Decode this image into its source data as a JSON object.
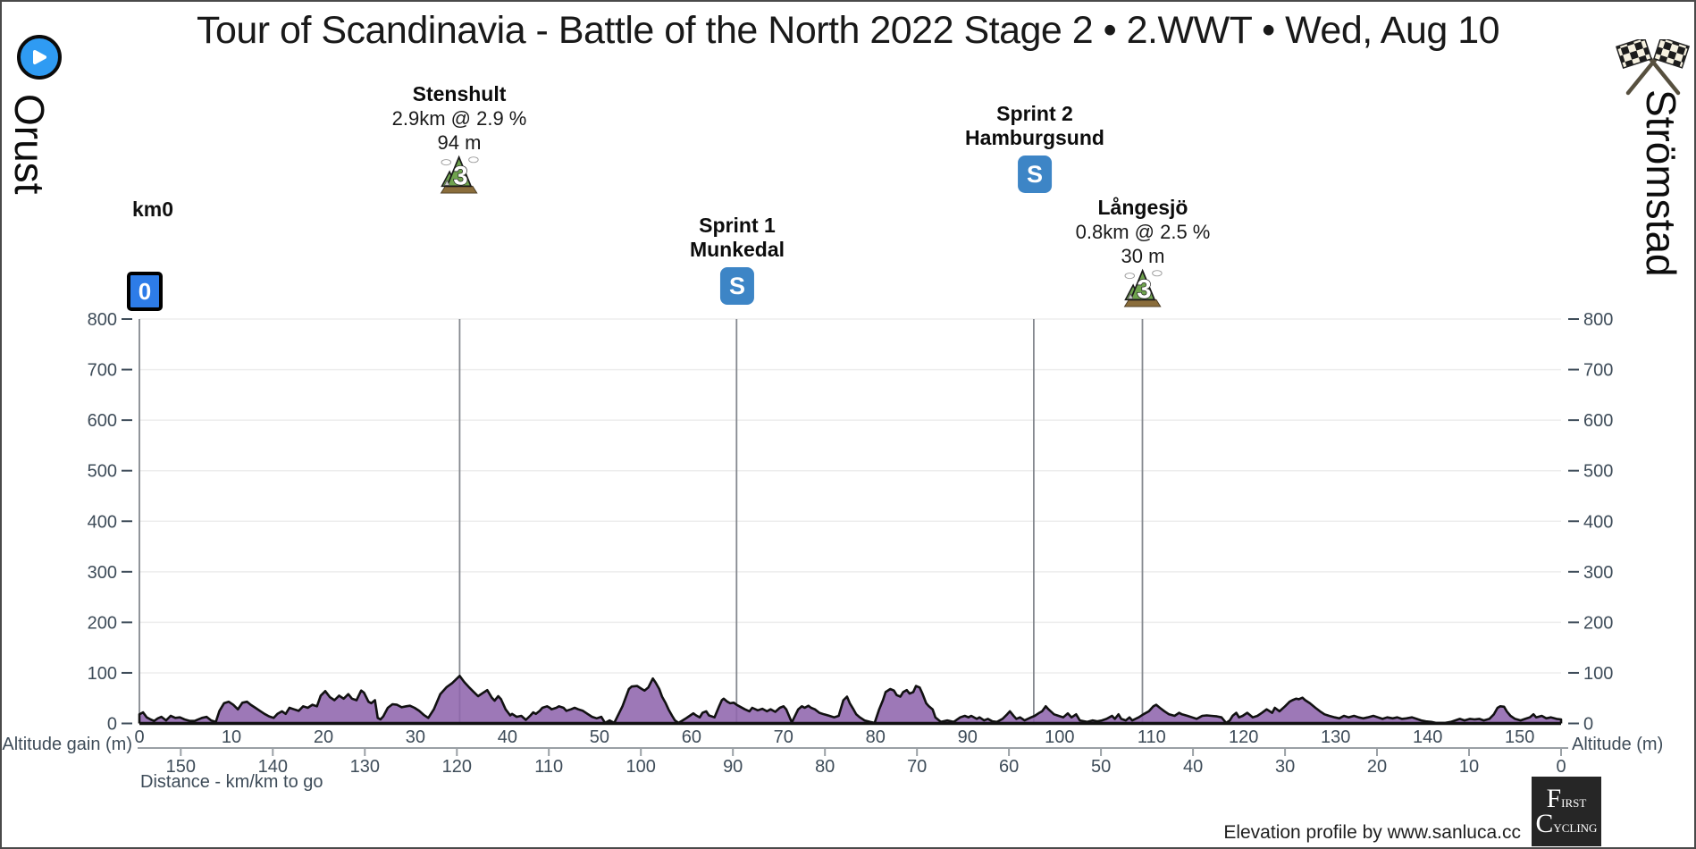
{
  "header": {
    "title": "Tour of Scandinavia - Battle of the North 2022 Stage 2 • 2.WWT • Wed, Aug 10",
    "start_location": "Orust",
    "finish_location": "Strömstad"
  },
  "annotations": {
    "km0": {
      "label": "km0",
      "marker": "0"
    },
    "climb1": {
      "name": "Stenshult",
      "detail": "2.9km @ 2.9 %",
      "height": "94 m"
    },
    "sprint1": {
      "name": "Sprint 1",
      "place": "Munkedal",
      "marker": "S"
    },
    "sprint2": {
      "name": "Sprint 2",
      "place": "Hamburgsund",
      "marker": "S"
    },
    "climb2": {
      "name": "Långesjö",
      "detail": "0.8km @ 2.5 %",
      "height": "30 m"
    }
  },
  "axes": {
    "left_label": "Altitude gain (m)",
    "right_label": "Altitude (m)",
    "x_label": "Distance - km/km to go"
  },
  "footer": {
    "credit": "Elevation profile by www.sanluca.cc",
    "logo_line1": "First",
    "logo_line2": "Cycling"
  },
  "chart_data": {
    "type": "area",
    "title": "Stage 2 elevation profile Orust → Strömstad",
    "xlabel": "Distance - km/km to go",
    "ylabel_left": "Altitude gain (m)",
    "ylabel_right": "Altitude (m)",
    "ylim": [
      0,
      800
    ],
    "total_km": 154.5,
    "yticks": [
      0,
      100,
      200,
      300,
      400,
      500,
      600,
      700,
      800
    ],
    "xticks": [
      0,
      10,
      20,
      30,
      40,
      50,
      60,
      70,
      80,
      90,
      100,
      110,
      120,
      130,
      140,
      150
    ],
    "xticks_togo": [
      150,
      140,
      130,
      120,
      110,
      100,
      90,
      80,
      70,
      60,
      50,
      40,
      30,
      20,
      10,
      0
    ],
    "grid": "horizontal-faint",
    "fill_color": "#9065ad",
    "outline_color": "#111111",
    "event_line_color": "#85898f",
    "events": [
      {
        "km": 0,
        "label": "km0",
        "line": true
      },
      {
        "km": 34.8,
        "label": "Stenshult climb, 94 m",
        "line": true
      },
      {
        "km": 64.9,
        "label": "Sprint 1 Munkedal",
        "line": true
      },
      {
        "km": 97.2,
        "label": "Sprint 2 Hamburgsund",
        "line": true
      },
      {
        "km": 109.0,
        "label": "Långesjö climb, 30 m",
        "line": true
      }
    ],
    "profile": [
      [
        0,
        18
      ],
      [
        0.4,
        22
      ],
      [
        0.8,
        12
      ],
      [
        1.2,
        8
      ],
      [
        1.6,
        5
      ],
      [
        2.0,
        10
      ],
      [
        2.4,
        13
      ],
      [
        2.9,
        6
      ],
      [
        3.4,
        15
      ],
      [
        3.9,
        11
      ],
      [
        4.4,
        12
      ],
      [
        4.9,
        8
      ],
      [
        5.5,
        5
      ],
      [
        6.0,
        5
      ],
      [
        6.8,
        11
      ],
      [
        7.3,
        13
      ],
      [
        7.8,
        6
      ],
      [
        8.3,
        3
      ],
      [
        8.7,
        25
      ],
      [
        9.2,
        40
      ],
      [
        9.7,
        43
      ],
      [
        10.2,
        37
      ],
      [
        10.7,
        28
      ],
      [
        11.2,
        41
      ],
      [
        11.7,
        43
      ],
      [
        12.1,
        37
      ],
      [
        12.6,
        31
      ],
      [
        13.1,
        25
      ],
      [
        13.6,
        19
      ],
      [
        14.1,
        14
      ],
      [
        14.6,
        11
      ],
      [
        15.0,
        19
      ],
      [
        15.5,
        24
      ],
      [
        15.9,
        19
      ],
      [
        16.3,
        31
      ],
      [
        16.8,
        28
      ],
      [
        17.3,
        25
      ],
      [
        17.8,
        34
      ],
      [
        18.3,
        31
      ],
      [
        18.8,
        37
      ],
      [
        19.3,
        34
      ],
      [
        19.7,
        55
      ],
      [
        20.2,
        64
      ],
      [
        20.7,
        52
      ],
      [
        21.2,
        46
      ],
      [
        21.7,
        55
      ],
      [
        22.2,
        49
      ],
      [
        22.7,
        58
      ],
      [
        23.1,
        49
      ],
      [
        23.6,
        46
      ],
      [
        24.1,
        65
      ],
      [
        24.4,
        61
      ],
      [
        24.9,
        43
      ],
      [
        25.2,
        40
      ],
      [
        25.6,
        46
      ],
      [
        25.9,
        11
      ],
      [
        26.2,
        8
      ],
      [
        26.5,
        14
      ],
      [
        27.0,
        31
      ],
      [
        27.5,
        38
      ],
      [
        28.0,
        37
      ],
      [
        28.5,
        32
      ],
      [
        29.0,
        34
      ],
      [
        29.4,
        35
      ],
      [
        29.9,
        31
      ],
      [
        30.4,
        25
      ],
      [
        30.9,
        17
      ],
      [
        31.4,
        11
      ],
      [
        32.0,
        28
      ],
      [
        32.7,
        58
      ],
      [
        33.4,
        72
      ],
      [
        34.0,
        80
      ],
      [
        34.8,
        94
      ],
      [
        35.3,
        82
      ],
      [
        35.8,
        72
      ],
      [
        36.3,
        63
      ],
      [
        36.8,
        54
      ],
      [
        37.3,
        60
      ],
      [
        37.8,
        66
      ],
      [
        38.3,
        51
      ],
      [
        38.6,
        45
      ],
      [
        39.0,
        54
      ],
      [
        39.3,
        48
      ],
      [
        39.8,
        28
      ],
      [
        40.3,
        16
      ],
      [
        40.5,
        19
      ],
      [
        41.0,
        13
      ],
      [
        41.5,
        15
      ],
      [
        42.0,
        7
      ],
      [
        42.5,
        16
      ],
      [
        42.8,
        22
      ],
      [
        43.1,
        19
      ],
      [
        43.5,
        25
      ],
      [
        43.8,
        31
      ],
      [
        44.3,
        34
      ],
      [
        44.6,
        31
      ],
      [
        44.8,
        28
      ],
      [
        45.3,
        31
      ],
      [
        45.6,
        34
      ],
      [
        46.1,
        31
      ],
      [
        46.4,
        25
      ],
      [
        46.9,
        28
      ],
      [
        47.3,
        31
      ],
      [
        47.7,
        28
      ],
      [
        48.2,
        25
      ],
      [
        48.7,
        19
      ],
      [
        49.2,
        13
      ],
      [
        49.7,
        10
      ],
      [
        50.2,
        13
      ],
      [
        50.6,
        1
      ],
      [
        51.1,
        6
      ],
      [
        51.6,
        1
      ],
      [
        52.5,
        34
      ],
      [
        53.2,
        68
      ],
      [
        53.5,
        73
      ],
      [
        54.1,
        74
      ],
      [
        54.6,
        68
      ],
      [
        54.9,
        65
      ],
      [
        55.3,
        71
      ],
      [
        55.8,
        89
      ],
      [
        56.1,
        81
      ],
      [
        56.5,
        68
      ],
      [
        56.8,
        53
      ],
      [
        57.2,
        40
      ],
      [
        57.5,
        28
      ],
      [
        57.9,
        15
      ],
      [
        58.2,
        6
      ],
      [
        58.6,
        1
      ],
      [
        59.3,
        9
      ],
      [
        59.8,
        15
      ],
      [
        60.2,
        20
      ],
      [
        60.5,
        16
      ],
      [
        60.9,
        12
      ],
      [
        61.2,
        21
      ],
      [
        61.6,
        24
      ],
      [
        61.9,
        16
      ],
      [
        62.5,
        12
      ],
      [
        63.0,
        34
      ],
      [
        63.3,
        46
      ],
      [
        63.5,
        49
      ],
      [
        63.9,
        43
      ],
      [
        64.2,
        40
      ],
      [
        64.6,
        41
      ],
      [
        64.9,
        37
      ],
      [
        65.2,
        34
      ],
      [
        65.8,
        28
      ],
      [
        66.3,
        24
      ],
      [
        66.6,
        31
      ],
      [
        67.2,
        26
      ],
      [
        67.7,
        29
      ],
      [
        68.2,
        24
      ],
      [
        68.6,
        28
      ],
      [
        69.1,
        23
      ],
      [
        69.6,
        31
      ],
      [
        70.0,
        34
      ],
      [
        70.3,
        28
      ],
      [
        70.9,
        2
      ],
      [
        71.6,
        28
      ],
      [
        72.0,
        34
      ],
      [
        72.3,
        31
      ],
      [
        72.7,
        35
      ],
      [
        73.0,
        31
      ],
      [
        73.4,
        28
      ],
      [
        73.9,
        21
      ],
      [
        74.4,
        18
      ],
      [
        75.0,
        15
      ],
      [
        75.5,
        12
      ],
      [
        76.0,
        15
      ],
      [
        76.5,
        46
      ],
      [
        76.9,
        53
      ],
      [
        77.2,
        40
      ],
      [
        77.6,
        28
      ],
      [
        77.9,
        18
      ],
      [
        78.3,
        12
      ],
      [
        78.8,
        6
      ],
      [
        79.4,
        3
      ],
      [
        79.9,
        1
      ],
      [
        80.4,
        28
      ],
      [
        80.8,
        46
      ],
      [
        81.1,
        62
      ],
      [
        81.6,
        68
      ],
      [
        82.0,
        65
      ],
      [
        82.3,
        56
      ],
      [
        82.7,
        53
      ],
      [
        83.0,
        62
      ],
      [
        83.4,
        66
      ],
      [
        83.7,
        59
      ],
      [
        84.1,
        62
      ],
      [
        84.4,
        74
      ],
      [
        84.8,
        71
      ],
      [
        85.1,
        59
      ],
      [
        85.5,
        40
      ],
      [
        85.8,
        34
      ],
      [
        86.2,
        28
      ],
      [
        86.5,
        12
      ],
      [
        87.1,
        3
      ],
      [
        87.8,
        6
      ],
      [
        88.5,
        3
      ],
      [
        89.2,
        12
      ],
      [
        89.7,
        15
      ],
      [
        90.1,
        12
      ],
      [
        90.4,
        15
      ],
      [
        91.0,
        9
      ],
      [
        91.3,
        12
      ],
      [
        91.8,
        6
      ],
      [
        92.2,
        9
      ],
      [
        92.7,
        4
      ],
      [
        93.2,
        3
      ],
      [
        93.8,
        9
      ],
      [
        94.3,
        18
      ],
      [
        94.6,
        24
      ],
      [
        95.0,
        15
      ],
      [
        95.3,
        9
      ],
      [
        95.7,
        12
      ],
      [
        96.2,
        6
      ],
      [
        96.9,
        12
      ],
      [
        97.3,
        15
      ],
      [
        97.8,
        21
      ],
      [
        98.1,
        24
      ],
      [
        98.5,
        34
      ],
      [
        98.8,
        28
      ],
      [
        99.4,
        18
      ],
      [
        99.9,
        15
      ],
      [
        100.4,
        12
      ],
      [
        100.9,
        20
      ],
      [
        101.3,
        12
      ],
      [
        101.8,
        18
      ],
      [
        102.2,
        6
      ],
      [
        103.0,
        3
      ],
      [
        103.6,
        6
      ],
      [
        104.1,
        4
      ],
      [
        104.6,
        6
      ],
      [
        105.1,
        9
      ],
      [
        105.7,
        15
      ],
      [
        106.0,
        9
      ],
      [
        106.4,
        18
      ],
      [
        106.7,
        9
      ],
      [
        107.2,
        6
      ],
      [
        107.6,
        12
      ],
      [
        107.9,
        6
      ],
      [
        108.6,
        12
      ],
      [
        109.1,
        18
      ],
      [
        109.7,
        24
      ],
      [
        110.2,
        34
      ],
      [
        110.5,
        37
      ],
      [
        110.9,
        31
      ],
      [
        111.4,
        24
      ],
      [
        111.9,
        18
      ],
      [
        112.5,
        15
      ],
      [
        113.0,
        21
      ],
      [
        113.3,
        18
      ],
      [
        113.9,
        15
      ],
      [
        114.4,
        12
      ],
      [
        114.9,
        9
      ],
      [
        115.5,
        15
      ],
      [
        116.0,
        16
      ],
      [
        116.5,
        15
      ],
      [
        117.1,
        14
      ],
      [
        117.6,
        12
      ],
      [
        118.1,
        1
      ],
      [
        118.5,
        6
      ],
      [
        118.8,
        15
      ],
      [
        119.2,
        21
      ],
      [
        119.5,
        12
      ],
      [
        119.9,
        15
      ],
      [
        120.4,
        21
      ],
      [
        121.0,
        12
      ],
      [
        121.5,
        15
      ],
      [
        122.0,
        21
      ],
      [
        122.5,
        28
      ],
      [
        123.1,
        21
      ],
      [
        123.4,
        31
      ],
      [
        123.9,
        24
      ],
      [
        124.5,
        34
      ],
      [
        125.0,
        43
      ],
      [
        125.3,
        46
      ],
      [
        125.7,
        49
      ],
      [
        126.0,
        48
      ],
      [
        126.4,
        51
      ],
      [
        126.7,
        46
      ],
      [
        127.2,
        40
      ],
      [
        127.8,
        31
      ],
      [
        128.3,
        24
      ],
      [
        128.8,
        18
      ],
      [
        129.3,
        15
      ],
      [
        129.9,
        12
      ],
      [
        130.4,
        10
      ],
      [
        130.9,
        15
      ],
      [
        131.4,
        12
      ],
      [
        132.0,
        15
      ],
      [
        132.5,
        12
      ],
      [
        133.0,
        10
      ],
      [
        133.5,
        12
      ],
      [
        134.1,
        15
      ],
      [
        134.6,
        12
      ],
      [
        135.1,
        9
      ],
      [
        135.6,
        12
      ],
      [
        136.2,
        10
      ],
      [
        136.7,
        12
      ],
      [
        137.2,
        9
      ],
      [
        137.7,
        10
      ],
      [
        138.3,
        12
      ],
      [
        138.8,
        9
      ],
      [
        139.3,
        6
      ],
      [
        139.8,
        4
      ],
      [
        140.4,
        3
      ],
      [
        140.9,
        1
      ],
      [
        141.4,
        1
      ],
      [
        141.9,
        1
      ],
      [
        142.5,
        3
      ],
      [
        143.0,
        6
      ],
      [
        143.5,
        9
      ],
      [
        144.0,
        6
      ],
      [
        144.6,
        9
      ],
      [
        145.1,
        8
      ],
      [
        145.6,
        9
      ],
      [
        146.1,
        6
      ],
      [
        146.7,
        9
      ],
      [
        147.2,
        18
      ],
      [
        147.6,
        31
      ],
      [
        147.9,
        34
      ],
      [
        148.3,
        33
      ],
      [
        148.6,
        24
      ],
      [
        149.0,
        15
      ],
      [
        149.5,
        9
      ],
      [
        150.1,
        6
      ],
      [
        150.6,
        9
      ],
      [
        151.1,
        12
      ],
      [
        151.5,
        18
      ],
      [
        151.8,
        12
      ],
      [
        152.4,
        15
      ],
      [
        152.9,
        10
      ],
      [
        153.4,
        12
      ],
      [
        154.0,
        9
      ],
      [
        154.5,
        8
      ]
    ]
  }
}
